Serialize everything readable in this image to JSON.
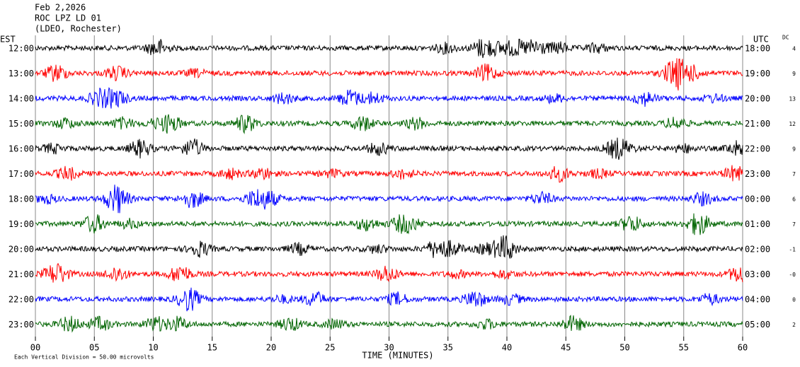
{
  "chart_data": {
    "type": "helicorder",
    "title": [
      "Feb 2,2026",
      "ROC LPZ LD 01",
      "(LDEO, Rochester)"
    ],
    "left_axis_label": "EST",
    "right_axis_label": "UTC",
    "dc_label": "DC",
    "x_label": "TIME (MINUTES)",
    "note": "Each Vertical Division =  50.00 microvolts",
    "xlim": [
      0,
      60
    ],
    "xticks": [
      {
        "value": 0,
        "label": "00"
      },
      {
        "value": 5,
        "label": "05"
      },
      10,
      15,
      20,
      25,
      30,
      35,
      40,
      45,
      50,
      55,
      60
    ],
    "rows": [
      {
        "left": "12:00",
        "right": "18:00",
        "dc": "4",
        "color": "#000000"
      },
      {
        "left": "13:00",
        "right": "19:00",
        "dc": "9",
        "color": "#ff0000"
      },
      {
        "left": "14:00",
        "right": "20:00",
        "dc": "13",
        "color": "#0000ff"
      },
      {
        "left": "15:00",
        "right": "21:00",
        "dc": "12",
        "color": "#006400"
      },
      {
        "left": "16:00",
        "right": "22:00",
        "dc": "9",
        "color": "#000000"
      },
      {
        "left": "17:00",
        "right": "23:00",
        "dc": "7",
        "color": "#ff0000"
      },
      {
        "left": "18:00",
        "right": "00:00",
        "dc": "6",
        "color": "#0000ff"
      },
      {
        "left": "19:00",
        "right": "01:00",
        "dc": "7",
        "color": "#006400"
      },
      {
        "left": "20:00",
        "right": "02:00",
        "dc": "-1",
        "color": "#000000"
      },
      {
        "left": "21:00",
        "right": "03:00",
        "dc": "-0",
        "color": "#ff0000"
      },
      {
        "left": "22:00",
        "right": "04:00",
        "dc": "0",
        "color": "#0000ff"
      },
      {
        "left": "23:00",
        "right": "05:00",
        "dc": "2",
        "color": "#006400"
      }
    ]
  }
}
